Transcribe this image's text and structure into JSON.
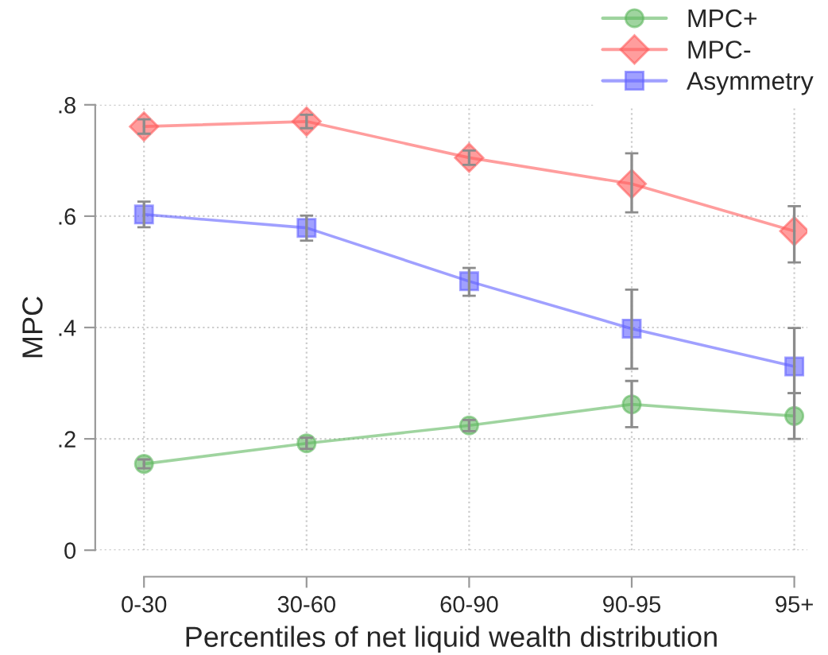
{
  "chart_data": {
    "type": "line",
    "xlabel": "Percentiles of net liquid wealth distribution",
    "ylabel": "MPC",
    "categories": [
      "0-30",
      "30-60",
      "60-90",
      "90-95",
      "95+"
    ],
    "series": [
      {
        "name": "MPC+",
        "color": "#5fb85f",
        "marker": "circle",
        "values": [
          0.155,
          0.192,
          0.224,
          0.262,
          0.241
        ],
        "errors": [
          [
            0.147,
            0.163
          ],
          [
            0.182,
            0.202
          ],
          [
            0.214,
            0.234
          ],
          [
            0.221,
            0.304
          ],
          [
            0.2,
            0.282
          ]
        ]
      },
      {
        "name": "MPC-",
        "color": "#ff5c5c",
        "marker": "diamond",
        "values": [
          0.761,
          0.77,
          0.705,
          0.658,
          0.573
        ],
        "errors": [
          [
            0.748,
            0.774
          ],
          [
            0.758,
            0.782
          ],
          [
            0.692,
            0.718
          ],
          [
            0.607,
            0.713
          ],
          [
            0.517,
            0.618
          ]
        ]
      },
      {
        "name": "Asymmetry",
        "color": "#6060ff",
        "marker": "square",
        "values": [
          0.603,
          0.579,
          0.483,
          0.398,
          0.33
        ],
        "errors": [
          [
            0.58,
            0.626
          ],
          [
            0.556,
            0.601
          ],
          [
            0.457,
            0.507
          ],
          [
            0.326,
            0.468
          ],
          [
            0.282,
            0.399
          ]
        ]
      }
    ],
    "ylim": [
      0,
      0.8
    ],
    "yticks": [
      0,
      {
        "value": 0.2,
        "label": ".2"
      },
      {
        "value": 0.4,
        "label": ".4"
      },
      {
        "value": 0.6,
        "label": ".6"
      },
      {
        "value": 0.8,
        "label": ".8"
      }
    ],
    "grid": true,
    "legend": "top right"
  }
}
